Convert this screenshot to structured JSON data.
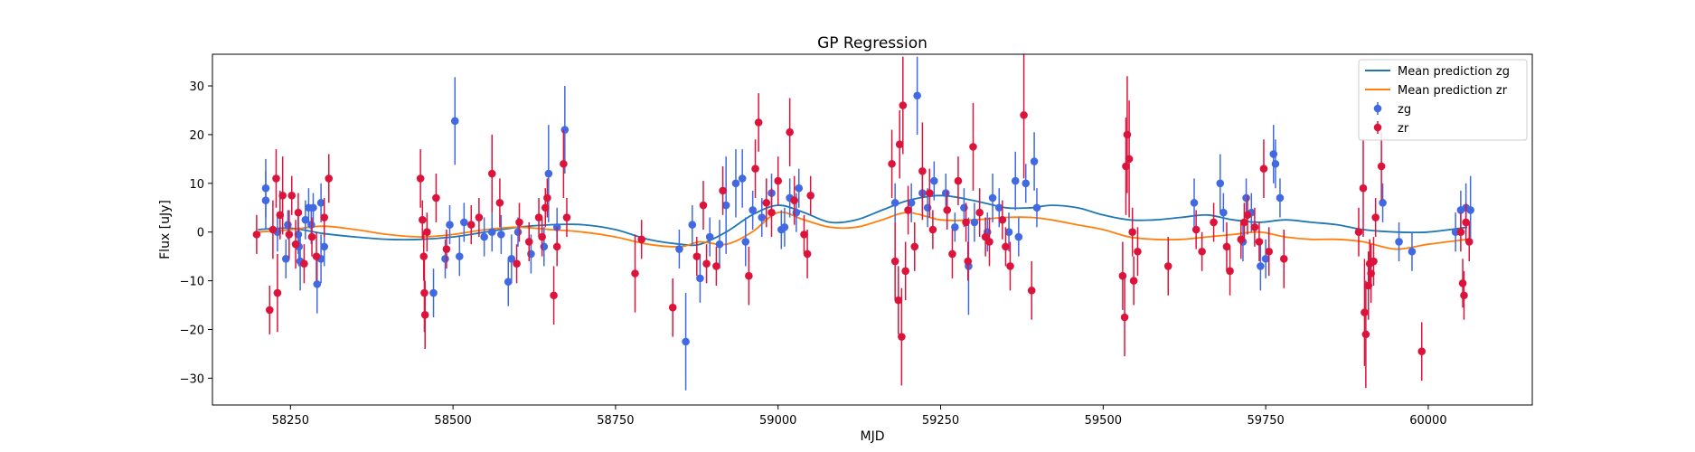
{
  "chart_data": {
    "type": "scatter",
    "title": "GP Regression",
    "xlabel": "MJD",
    "ylabel": "Flux [uJy]",
    "xlim": [
      58130,
      60160
    ],
    "ylim": [
      -35.5,
      36.5
    ],
    "xticks": [
      58250,
      58500,
      58750,
      59000,
      59250,
      59500,
      59750,
      60000
    ],
    "yticks": [
      -30,
      -20,
      -10,
      0,
      10,
      20,
      30
    ],
    "grid": false,
    "legend_position": "top-right",
    "legend": [
      {
        "label": "Mean prediction zg",
        "kind": "line",
        "color": "#1f77b4"
      },
      {
        "label": "Mean prediction zr",
        "kind": "line",
        "color": "#ff7f0e"
      },
      {
        "label": "zg",
        "kind": "errorbar",
        "color": "#4169e1"
      },
      {
        "label": "zr",
        "kind": "errorbar",
        "color": "#dc143c"
      }
    ],
    "lines": [
      {
        "name": "Mean prediction zg",
        "color": "#1f77b4",
        "x": [
          58200,
          58250,
          58300,
          58350,
          58400,
          58450,
          58500,
          58550,
          58600,
          58650,
          58700,
          58750,
          58800,
          58850,
          58880,
          58920,
          58960,
          59000,
          59040,
          59080,
          59120,
          59160,
          59200,
          59250,
          59300,
          59350,
          59390,
          59420,
          59460,
          59500,
          59540,
          59580,
          59620,
          59660,
          59700,
          59740,
          59780,
          59820,
          59860,
          59900,
          59950,
          60000,
          60060
        ],
        "y": [
          0.5,
          0.8,
          -0.3,
          -1.0,
          -1.5,
          -1.5,
          -1.0,
          0.0,
          1.0,
          1.5,
          1.5,
          0.5,
          -1.5,
          -2.5,
          -2.5,
          0.0,
          3.5,
          5.5,
          4.0,
          2.0,
          2.5,
          4.5,
          6.5,
          7.5,
          6.5,
          5.0,
          5.0,
          5.5,
          5.0,
          3.5,
          2.5,
          2.5,
          3.0,
          3.5,
          2.5,
          2.0,
          2.5,
          2.0,
          1.5,
          0.5,
          0.0,
          0.0,
          1.0
        ]
      },
      {
        "name": "Mean prediction zr",
        "color": "#ff7f0e",
        "x": [
          58200,
          58250,
          58300,
          58350,
          58400,
          58450,
          58500,
          58550,
          58600,
          58650,
          58700,
          58750,
          58800,
          58850,
          58880,
          58920,
          58960,
          59000,
          59040,
          59080,
          59120,
          59160,
          59200,
          59250,
          59300,
          59350,
          59390,
          59420,
          59460,
          59500,
          59540,
          59580,
          59620,
          59660,
          59700,
          59740,
          59780,
          59820,
          59860,
          59900,
          59950,
          60000,
          60060
        ],
        "y": [
          0.0,
          0.5,
          1.2,
          0.5,
          -0.5,
          -1.0,
          -0.5,
          0.5,
          1.0,
          0.5,
          0.0,
          -1.0,
          -2.5,
          -3.0,
          -2.0,
          -2.5,
          0.0,
          4.0,
          2.5,
          1.0,
          1.0,
          2.5,
          4.0,
          2.5,
          2.5,
          3.0,
          3.0,
          2.5,
          1.5,
          0.5,
          -1.0,
          -1.5,
          -1.5,
          -1.0,
          -0.5,
          0.0,
          -1.0,
          -1.5,
          -1.5,
          -2.0,
          -3.5,
          -2.5,
          -1.5
        ]
      }
    ],
    "series": [
      {
        "name": "zg",
        "color": "#4169e1",
        "points": [
          [
            58212,
            9,
            6
          ],
          [
            58212,
            6.5,
            6
          ],
          [
            58230,
            0,
            4
          ],
          [
            58243,
            -5.5,
            4
          ],
          [
            58246,
            1.5,
            3
          ],
          [
            58262,
            -0.5,
            4
          ],
          [
            58263,
            -3,
            4
          ],
          [
            58265,
            -6,
            6
          ],
          [
            58273,
            2.5,
            4
          ],
          [
            58278,
            5,
            4
          ],
          [
            58282,
            1.5,
            4
          ],
          [
            58285,
            5,
            3
          ],
          [
            58291,
            -10.7,
            6
          ],
          [
            58297,
            6,
            4
          ],
          [
            58297,
            -5.5,
            5
          ],
          [
            58302,
            -3,
            4
          ],
          [
            58470,
            -12.5,
            5
          ],
          [
            58488,
            -5.5,
            4
          ],
          [
            58495,
            1.5,
            4
          ],
          [
            58503,
            22.8,
            9
          ],
          [
            58510,
            -5,
            4
          ],
          [
            58517,
            2,
            4
          ],
          [
            58548,
            -1,
            4
          ],
          [
            58560,
            0,
            4
          ],
          [
            58574,
            -0.5,
            4
          ],
          [
            58585,
            -10.2,
            5
          ],
          [
            58590,
            -5.5,
            5
          ],
          [
            58600,
            0,
            3
          ],
          [
            58620,
            -4.5,
            4
          ],
          [
            58640,
            -3,
            4
          ],
          [
            58647,
            12,
            10
          ],
          [
            58660,
            1,
            4
          ],
          [
            58672,
            21,
            9
          ],
          [
            58848,
            -3.5,
            4
          ],
          [
            58858,
            -22.5,
            10
          ],
          [
            58868,
            1.5,
            4
          ],
          [
            58880,
            -9.5,
            5
          ],
          [
            58895,
            -1,
            4
          ],
          [
            58910,
            -2.5,
            5
          ],
          [
            58920,
            5.5,
            10
          ],
          [
            58935,
            10,
            7
          ],
          [
            58945,
            11,
            6
          ],
          [
            58950,
            -2,
            5
          ],
          [
            58961,
            4.5,
            4
          ],
          [
            58975,
            3,
            4
          ],
          [
            58990,
            8,
            4
          ],
          [
            59005,
            0.5,
            4
          ],
          [
            59010,
            1,
            4
          ],
          [
            59018,
            7,
            4
          ],
          [
            59028,
            4,
            4
          ],
          [
            59032,
            9,
            4
          ],
          [
            59180,
            6,
            4
          ],
          [
            59205,
            6,
            4
          ],
          [
            59214,
            28,
            8
          ],
          [
            59222,
            8,
            4
          ],
          [
            59230,
            5,
            4
          ],
          [
            59240,
            10.5,
            4
          ],
          [
            59258,
            8,
            4
          ],
          [
            59272,
            1,
            3
          ],
          [
            59286,
            5,
            4
          ],
          [
            59293,
            -7,
            10
          ],
          [
            59302,
            2,
            4
          ],
          [
            59322,
            0,
            4
          ],
          [
            59330,
            7,
            5
          ],
          [
            59340,
            5,
            4
          ],
          [
            59355,
            0,
            4
          ],
          [
            59365,
            10.5,
            6
          ],
          [
            59370,
            -1,
            4
          ],
          [
            59381,
            10,
            4
          ],
          [
            59394,
            14.5,
            6
          ],
          [
            59398,
            5,
            4
          ],
          [
            59640,
            6,
            5
          ],
          [
            59680,
            10,
            6
          ],
          [
            59685,
            4,
            4
          ],
          [
            59715,
            -2,
            4
          ],
          [
            59720,
            7,
            4
          ],
          [
            59728,
            4,
            4
          ],
          [
            59742,
            -7,
            5
          ],
          [
            59750,
            -5.5,
            4
          ],
          [
            59762,
            16,
            6
          ],
          [
            59765,
            14,
            5
          ],
          [
            59772,
            7,
            4
          ],
          [
            59930,
            6,
            4
          ],
          [
            59955,
            -2,
            4
          ],
          [
            59975,
            -4,
            4
          ],
          [
            60042,
            0,
            4
          ],
          [
            60050,
            4.5,
            4
          ],
          [
            60058,
            5,
            5
          ],
          [
            60065,
            4.5,
            7
          ]
        ]
      },
      {
        "name": "zr",
        "color": "#dc143c",
        "points": [
          [
            58198,
            -0.5,
            4
          ],
          [
            58218,
            -16,
            5
          ],
          [
            58223,
            0.5,
            6
          ],
          [
            58228,
            11,
            6
          ],
          [
            58230,
            -12.5,
            8
          ],
          [
            58234,
            3.5,
            5
          ],
          [
            58238,
            7.5,
            8
          ],
          [
            58248,
            -0.5,
            5
          ],
          [
            58252,
            7.5,
            4
          ],
          [
            58258,
            -2.5,
            5
          ],
          [
            58262,
            4,
            4
          ],
          [
            58271,
            -6.5,
            4
          ],
          [
            58283,
            -1,
            4
          ],
          [
            58290,
            -5,
            5
          ],
          [
            58302,
            3,
            4
          ],
          [
            58309,
            11,
            5
          ],
          [
            58450,
            11,
            6
          ],
          [
            58453,
            2.5,
            4
          ],
          [
            58455,
            -5,
            5
          ],
          [
            58456,
            -12.5,
            8
          ],
          [
            58457,
            -17,
            7
          ],
          [
            58460,
            0,
            4
          ],
          [
            58474,
            7,
            5
          ],
          [
            58490,
            -3.5,
            4
          ],
          [
            58528,
            1.5,
            4
          ],
          [
            58540,
            3,
            4
          ],
          [
            58560,
            12,
            8
          ],
          [
            58572,
            6,
            5
          ],
          [
            58598,
            -6.5,
            4
          ],
          [
            58602,
            2,
            4
          ],
          [
            58617,
            -2,
            4
          ],
          [
            58632,
            3,
            4
          ],
          [
            58637,
            -1,
            4
          ],
          [
            58642,
            5,
            4
          ],
          [
            58645,
            7,
            4
          ],
          [
            58655,
            -13,
            6
          ],
          [
            58660,
            -3,
            4
          ],
          [
            58670,
            14,
            7
          ],
          [
            58675,
            3,
            4
          ],
          [
            58780,
            -8.5,
            8
          ],
          [
            58790,
            -1.5,
            4
          ],
          [
            58838,
            -15.5,
            6
          ],
          [
            58875,
            -5,
            4
          ],
          [
            58885,
            5.5,
            5
          ],
          [
            58890,
            -6.5,
            4
          ],
          [
            58905,
            -7,
            4
          ],
          [
            58915,
            8.5,
            5
          ],
          [
            58955,
            -9,
            6
          ],
          [
            58965,
            13,
            6
          ],
          [
            58970,
            22.5,
            6
          ],
          [
            58982,
            6,
            5
          ],
          [
            58990,
            4,
            5
          ],
          [
            59000,
            10.5,
            5
          ],
          [
            59018,
            20.5,
            7
          ],
          [
            59025,
            6.5,
            5
          ],
          [
            59040,
            -0.5,
            4
          ],
          [
            59045,
            -4.5,
            5
          ],
          [
            59050,
            7.5,
            4
          ],
          [
            59175,
            14,
            7
          ],
          [
            59180,
            -6,
            8
          ],
          [
            59185,
            -14,
            7
          ],
          [
            59187,
            18,
            7
          ],
          [
            59190,
            -21.5,
            10
          ],
          [
            59192,
            26,
            10
          ],
          [
            59196,
            -8,
            6
          ],
          [
            59200,
            4.5,
            5
          ],
          [
            59210,
            -3,
            5
          ],
          [
            59222,
            12.5,
            10
          ],
          [
            59233,
            8,
            5
          ],
          [
            59238,
            0.5,
            4
          ],
          [
            59260,
            4.5,
            4
          ],
          [
            59268,
            -4.5,
            5
          ],
          [
            59277,
            10.5,
            5
          ],
          [
            59289,
            2,
            4
          ],
          [
            59292,
            -6,
            4
          ],
          [
            59300,
            17.5,
            9
          ],
          [
            59310,
            4,
            5
          ],
          [
            59319,
            -1,
            4
          ],
          [
            59325,
            -2,
            5
          ],
          [
            59345,
            2.5,
            4
          ],
          [
            59350,
            -3,
            4
          ],
          [
            59357,
            -7,
            5
          ],
          [
            59378,
            24,
            13
          ],
          [
            59390,
            -12,
            6
          ],
          [
            59530,
            -9,
            7
          ],
          [
            59533,
            -17.5,
            8
          ],
          [
            59535,
            13.5,
            10
          ],
          [
            59537,
            20,
            12
          ],
          [
            59540,
            15,
            12
          ],
          [
            59545,
            0,
            5
          ],
          [
            59547,
            -10,
            5
          ],
          [
            59553,
            -4,
            5
          ],
          [
            59600,
            -7,
            6
          ],
          [
            59643,
            0.5,
            4
          ],
          [
            59652,
            -4,
            4
          ],
          [
            59670,
            2,
            4
          ],
          [
            59690,
            -3,
            5
          ],
          [
            59695,
            -8,
            5
          ],
          [
            59712,
            -1.5,
            4
          ],
          [
            59717,
            2,
            4
          ],
          [
            59722,
            3.5,
            4
          ],
          [
            59733,
            1,
            4
          ],
          [
            59740,
            -2,
            4
          ],
          [
            59747,
            13,
            6
          ],
          [
            59755,
            -4,
            5
          ],
          [
            59778,
            -5.5,
            6
          ],
          [
            59893,
            0,
            5
          ],
          [
            59900,
            9,
            10
          ],
          [
            59902,
            -16.5,
            11
          ],
          [
            59904,
            -21,
            11
          ],
          [
            59908,
            -11,
            7
          ],
          [
            59910,
            -6.5,
            5
          ],
          [
            59912,
            -8.5,
            6
          ],
          [
            59916,
            -6,
            5
          ],
          [
            59919,
            3,
            4
          ],
          [
            59928,
            13.5,
            7
          ],
          [
            59990,
            -24.5,
            6
          ],
          [
            60050,
            0,
            4
          ],
          [
            60053,
            -10.5,
            5
          ],
          [
            60055,
            -13,
            5
          ],
          [
            60058,
            2,
            4
          ],
          [
            60063,
            -2,
            4
          ]
        ]
      }
    ]
  }
}
